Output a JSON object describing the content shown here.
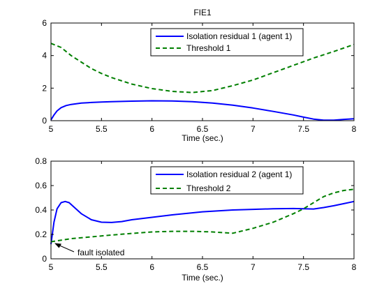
{
  "figure_title": "FIE1",
  "colors": {
    "residual": "#0000ff",
    "threshold": "#007f00",
    "axes": "#000000",
    "background": "#ffffff"
  },
  "chart_data": [
    {
      "type": "line",
      "title": "FIE1",
      "xlabel": "Time (sec.)",
      "ylabel": "",
      "xlim": [
        5,
        8
      ],
      "ylim": [
        0,
        6
      ],
      "xticks": [
        "5",
        "5.5",
        "6",
        "6.5",
        "7",
        "7.5",
        "8"
      ],
      "yticks": [
        "0",
        "2",
        "4",
        "6"
      ],
      "grid": false,
      "legend_position": "top-right",
      "series": [
        {
          "name": "Isolation residual 1 (agent 1)",
          "style": "solid",
          "color": "#0000ff",
          "x": [
            5.0,
            5.03,
            5.06,
            5.1,
            5.15,
            5.2,
            5.3,
            5.4,
            5.5,
            5.6,
            5.8,
            6.0,
            6.2,
            6.4,
            6.6,
            6.8,
            7.0,
            7.2,
            7.4,
            7.5,
            7.6,
            7.7,
            7.8,
            7.9,
            8.0
          ],
          "y": [
            0.05,
            0.35,
            0.6,
            0.8,
            0.93,
            1.0,
            1.08,
            1.12,
            1.15,
            1.17,
            1.2,
            1.22,
            1.21,
            1.17,
            1.08,
            0.95,
            0.78,
            0.57,
            0.35,
            0.22,
            0.1,
            0.03,
            0.03,
            0.08,
            0.12
          ]
        },
        {
          "name": "Threshold 1",
          "style": "dashed",
          "color": "#007f00",
          "x": [
            5.0,
            5.1,
            5.2,
            5.3,
            5.4,
            5.5,
            5.6,
            5.8,
            6.0,
            6.2,
            6.4,
            6.6,
            6.8,
            7.0,
            7.2,
            7.4,
            7.6,
            7.8,
            8.0
          ],
          "y": [
            4.75,
            4.5,
            4.0,
            3.6,
            3.2,
            2.9,
            2.65,
            2.25,
            1.97,
            1.8,
            1.73,
            1.85,
            2.15,
            2.5,
            2.95,
            3.4,
            3.85,
            4.25,
            4.68
          ]
        }
      ]
    },
    {
      "type": "line",
      "title": "",
      "xlabel": "Time (sec.)",
      "ylabel": "",
      "xlim": [
        5,
        8
      ],
      "ylim": [
        0,
        0.8
      ],
      "xticks": [
        "5",
        "5.5",
        "6",
        "6.5",
        "7",
        "7.5",
        "8"
      ],
      "yticks": [
        "0",
        "0.2",
        "0.4",
        "0.6",
        "0.8"
      ],
      "grid": false,
      "legend_position": "top-right",
      "annotation": {
        "text": "fault isolated",
        "x": 5.0,
        "y": 0.13
      },
      "series": [
        {
          "name": "Isolation residual 2 (agent 1)",
          "style": "solid",
          "color": "#0000ff",
          "x": [
            5.0,
            5.03,
            5.06,
            5.1,
            5.14,
            5.18,
            5.22,
            5.3,
            5.4,
            5.5,
            5.6,
            5.7,
            5.8,
            6.0,
            6.2,
            6.5,
            6.8,
            7.0,
            7.2,
            7.4,
            7.5,
            7.6,
            7.7,
            7.8,
            7.9,
            8.0
          ],
          "y": [
            0.12,
            0.3,
            0.41,
            0.46,
            0.47,
            0.46,
            0.43,
            0.37,
            0.32,
            0.3,
            0.298,
            0.305,
            0.32,
            0.34,
            0.36,
            0.385,
            0.4,
            0.405,
            0.41,
            0.412,
            0.41,
            0.408,
            0.42,
            0.435,
            0.452,
            0.47
          ]
        },
        {
          "name": "Threshold 2",
          "style": "dashed",
          "color": "#007f00",
          "x": [
            5.0,
            5.2,
            5.4,
            5.6,
            5.8,
            6.0,
            6.2,
            6.4,
            6.6,
            6.8,
            7.0,
            7.2,
            7.4,
            7.5,
            7.6,
            7.7,
            7.8,
            7.9,
            8.0
          ],
          "y": [
            0.14,
            0.165,
            0.18,
            0.195,
            0.208,
            0.22,
            0.225,
            0.225,
            0.22,
            0.21,
            0.25,
            0.3,
            0.37,
            0.41,
            0.46,
            0.51,
            0.54,
            0.56,
            0.57
          ]
        }
      ]
    }
  ]
}
